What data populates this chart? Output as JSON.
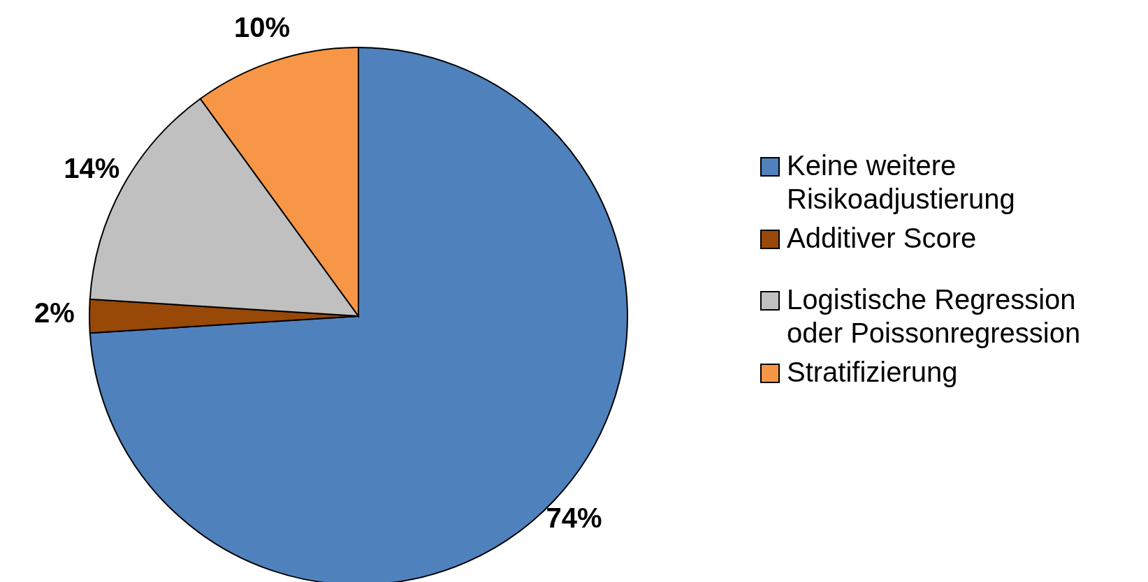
{
  "chart_data": {
    "type": "pie",
    "categories": [
      "Keine weitere Risikoadjustierung",
      "Additiver Score",
      "Logistische Regression oder Poissonregression",
      "Stratifizierung"
    ],
    "values": [
      74,
      2,
      14,
      10
    ],
    "value_labels": [
      "74%",
      "2%",
      "14%",
      "10%"
    ],
    "colors": [
      "#4f81bd",
      "#984807",
      "#c0c0c0",
      "#f79646"
    ],
    "legend": "right"
  }
}
